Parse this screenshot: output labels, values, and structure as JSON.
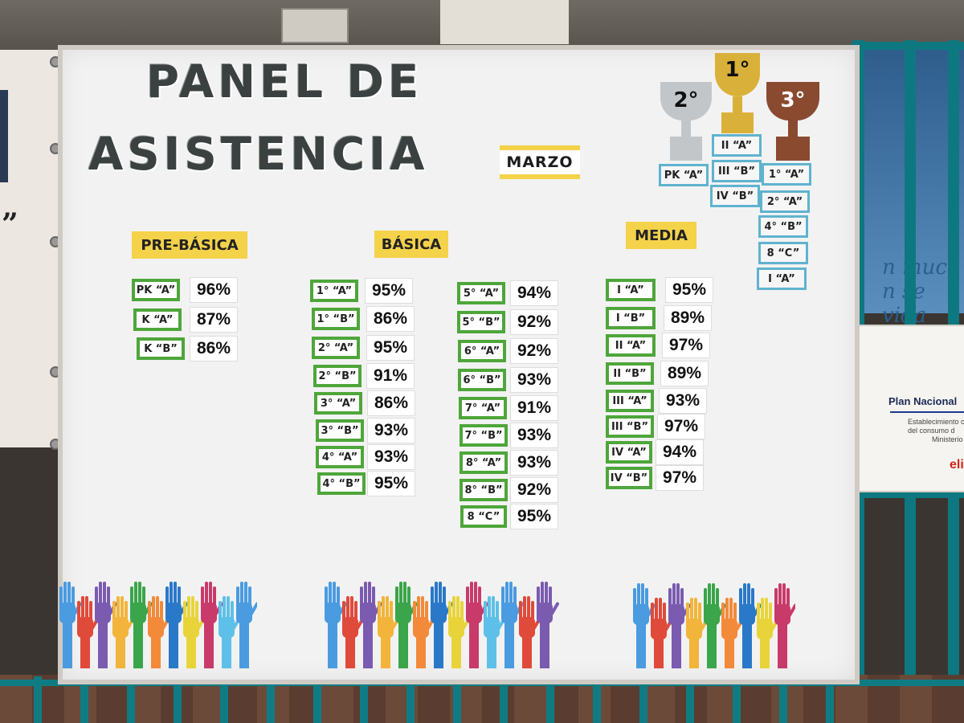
{
  "board": {
    "title_line1": "PANEL DE",
    "title_line2": "ASISTENCIA",
    "month": "MARZO"
  },
  "sections": {
    "prebasica": {
      "label": "PRE-BÁSICA",
      "rows": [
        {
          "class": "PK “A”",
          "pct": "96%"
        },
        {
          "class": "K “A”",
          "pct": "87%"
        },
        {
          "class": "K “B”",
          "pct": "86%"
        }
      ]
    },
    "basica": {
      "label": "BÁSICA",
      "col1": [
        {
          "class": "1° “A”",
          "pct": "95%"
        },
        {
          "class": "1° “B”",
          "pct": "86%"
        },
        {
          "class": "2° “A”",
          "pct": "95%"
        },
        {
          "class": "2° “B”",
          "pct": "91%"
        },
        {
          "class": "3° “A”",
          "pct": "86%"
        },
        {
          "class": "3° “B”",
          "pct": "93%"
        },
        {
          "class": "4° “A”",
          "pct": "93%"
        },
        {
          "class": "4° “B”",
          "pct": "95%"
        }
      ],
      "col2": [
        {
          "class": "5° “A”",
          "pct": "94%"
        },
        {
          "class": "5° “B”",
          "pct": "92%"
        },
        {
          "class": "6° “A”",
          "pct": "92%"
        },
        {
          "class": "6° “B”",
          "pct": "93%"
        },
        {
          "class": "7° “A”",
          "pct": "91%"
        },
        {
          "class": "7° “B”",
          "pct": "93%"
        },
        {
          "class": "8° “A”",
          "pct": "93%"
        },
        {
          "class": "8° “B”",
          "pct": "92%"
        },
        {
          "class": "8 “C”",
          "pct": "95%"
        }
      ]
    },
    "media": {
      "label": "MEDIA",
      "rows": [
        {
          "class": "I “A”",
          "pct": "95%"
        },
        {
          "class": "I “B”",
          "pct": "89%"
        },
        {
          "class": "II “A”",
          "pct": "97%"
        },
        {
          "class": "II “B”",
          "pct": "89%"
        },
        {
          "class": "III “A”",
          "pct": "93%"
        },
        {
          "class": "III “B”",
          "pct": "97%"
        },
        {
          "class": "IV “A”",
          "pct": "94%"
        },
        {
          "class": "IV “B”",
          "pct": "97%"
        }
      ]
    }
  },
  "podium": {
    "first": {
      "label": "1°",
      "color": "#d9b13a",
      "tags": [
        "II “A”",
        "III “B”",
        "IV “B”"
      ]
    },
    "second": {
      "label": "2°",
      "color": "#c3c6c8",
      "tags": [
        "PK “A”"
      ]
    },
    "third": {
      "label": "3°",
      "color": "#8a4a30",
      "tags": [
        "1° “A”",
        "2° “A”",
        "4° “B”",
        "8 “C”",
        "I “A”"
      ]
    }
  },
  "signage": {
    "plan_title": "Plan Nacional",
    "plan_small_1": "Establecimiento con",
    "plan_small_2": "del consumo d",
    "plan_small_3": "Ministerio",
    "plan_brand": "eli",
    "mural_text_1": "n muc",
    "mural_text_2": "n se  vida",
    "banner_quote": "”"
  },
  "hand_colors": [
    "#4a9be0",
    "#e04a3a",
    "#7a5bb0",
    "#f2b43a",
    "#3aa54a",
    "#f28a3a",
    "#2a78c8",
    "#e8d43a",
    "#c83a6a",
    "#5ec0e8"
  ]
}
